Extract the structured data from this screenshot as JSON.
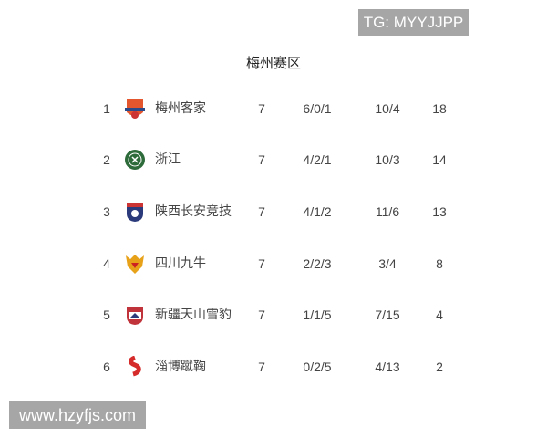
{
  "watermark_top": "TG: MYYJJPP",
  "watermark_bottom": "www.hzyfjs.com",
  "title": "梅州赛区",
  "rows": [
    {
      "rank": "1",
      "team": "梅州客家",
      "played": "7",
      "wdl": "6/0/1",
      "goals": "10/4",
      "points": "18",
      "logo": "meizhou-hakka-crest",
      "color": "#e4572e"
    },
    {
      "rank": "2",
      "team": "浙江",
      "played": "7",
      "wdl": "4/2/1",
      "goals": "10/3",
      "points": "14",
      "logo": "zhejiang-crest",
      "color": "#2e6b3a"
    },
    {
      "rank": "3",
      "team": "陕西长安竞技",
      "played": "7",
      "wdl": "4/1/2",
      "goals": "11/6",
      "points": "13",
      "logo": "shaanxi-changan-crest",
      "color": "#2a3a7a"
    },
    {
      "rank": "4",
      "team": "四川九牛",
      "played": "7",
      "wdl": "2/2/3",
      "goals": "3/4",
      "points": "8",
      "logo": "sichuan-jiuniu-crest",
      "color": "#e8a21a"
    },
    {
      "rank": "5",
      "team": "新疆天山雪豹",
      "played": "7",
      "wdl": "1/1/5",
      "goals": "7/15",
      "points": "4",
      "logo": "xinjiang-tianshan-crest",
      "color": "#c0333a"
    },
    {
      "rank": "6",
      "team": "淄博蹴鞠",
      "played": "7",
      "wdl": "0/2/5",
      "goals": "4/13",
      "points": "2",
      "logo": "zibo-cuju-crest",
      "color": "#d62b2b"
    }
  ]
}
